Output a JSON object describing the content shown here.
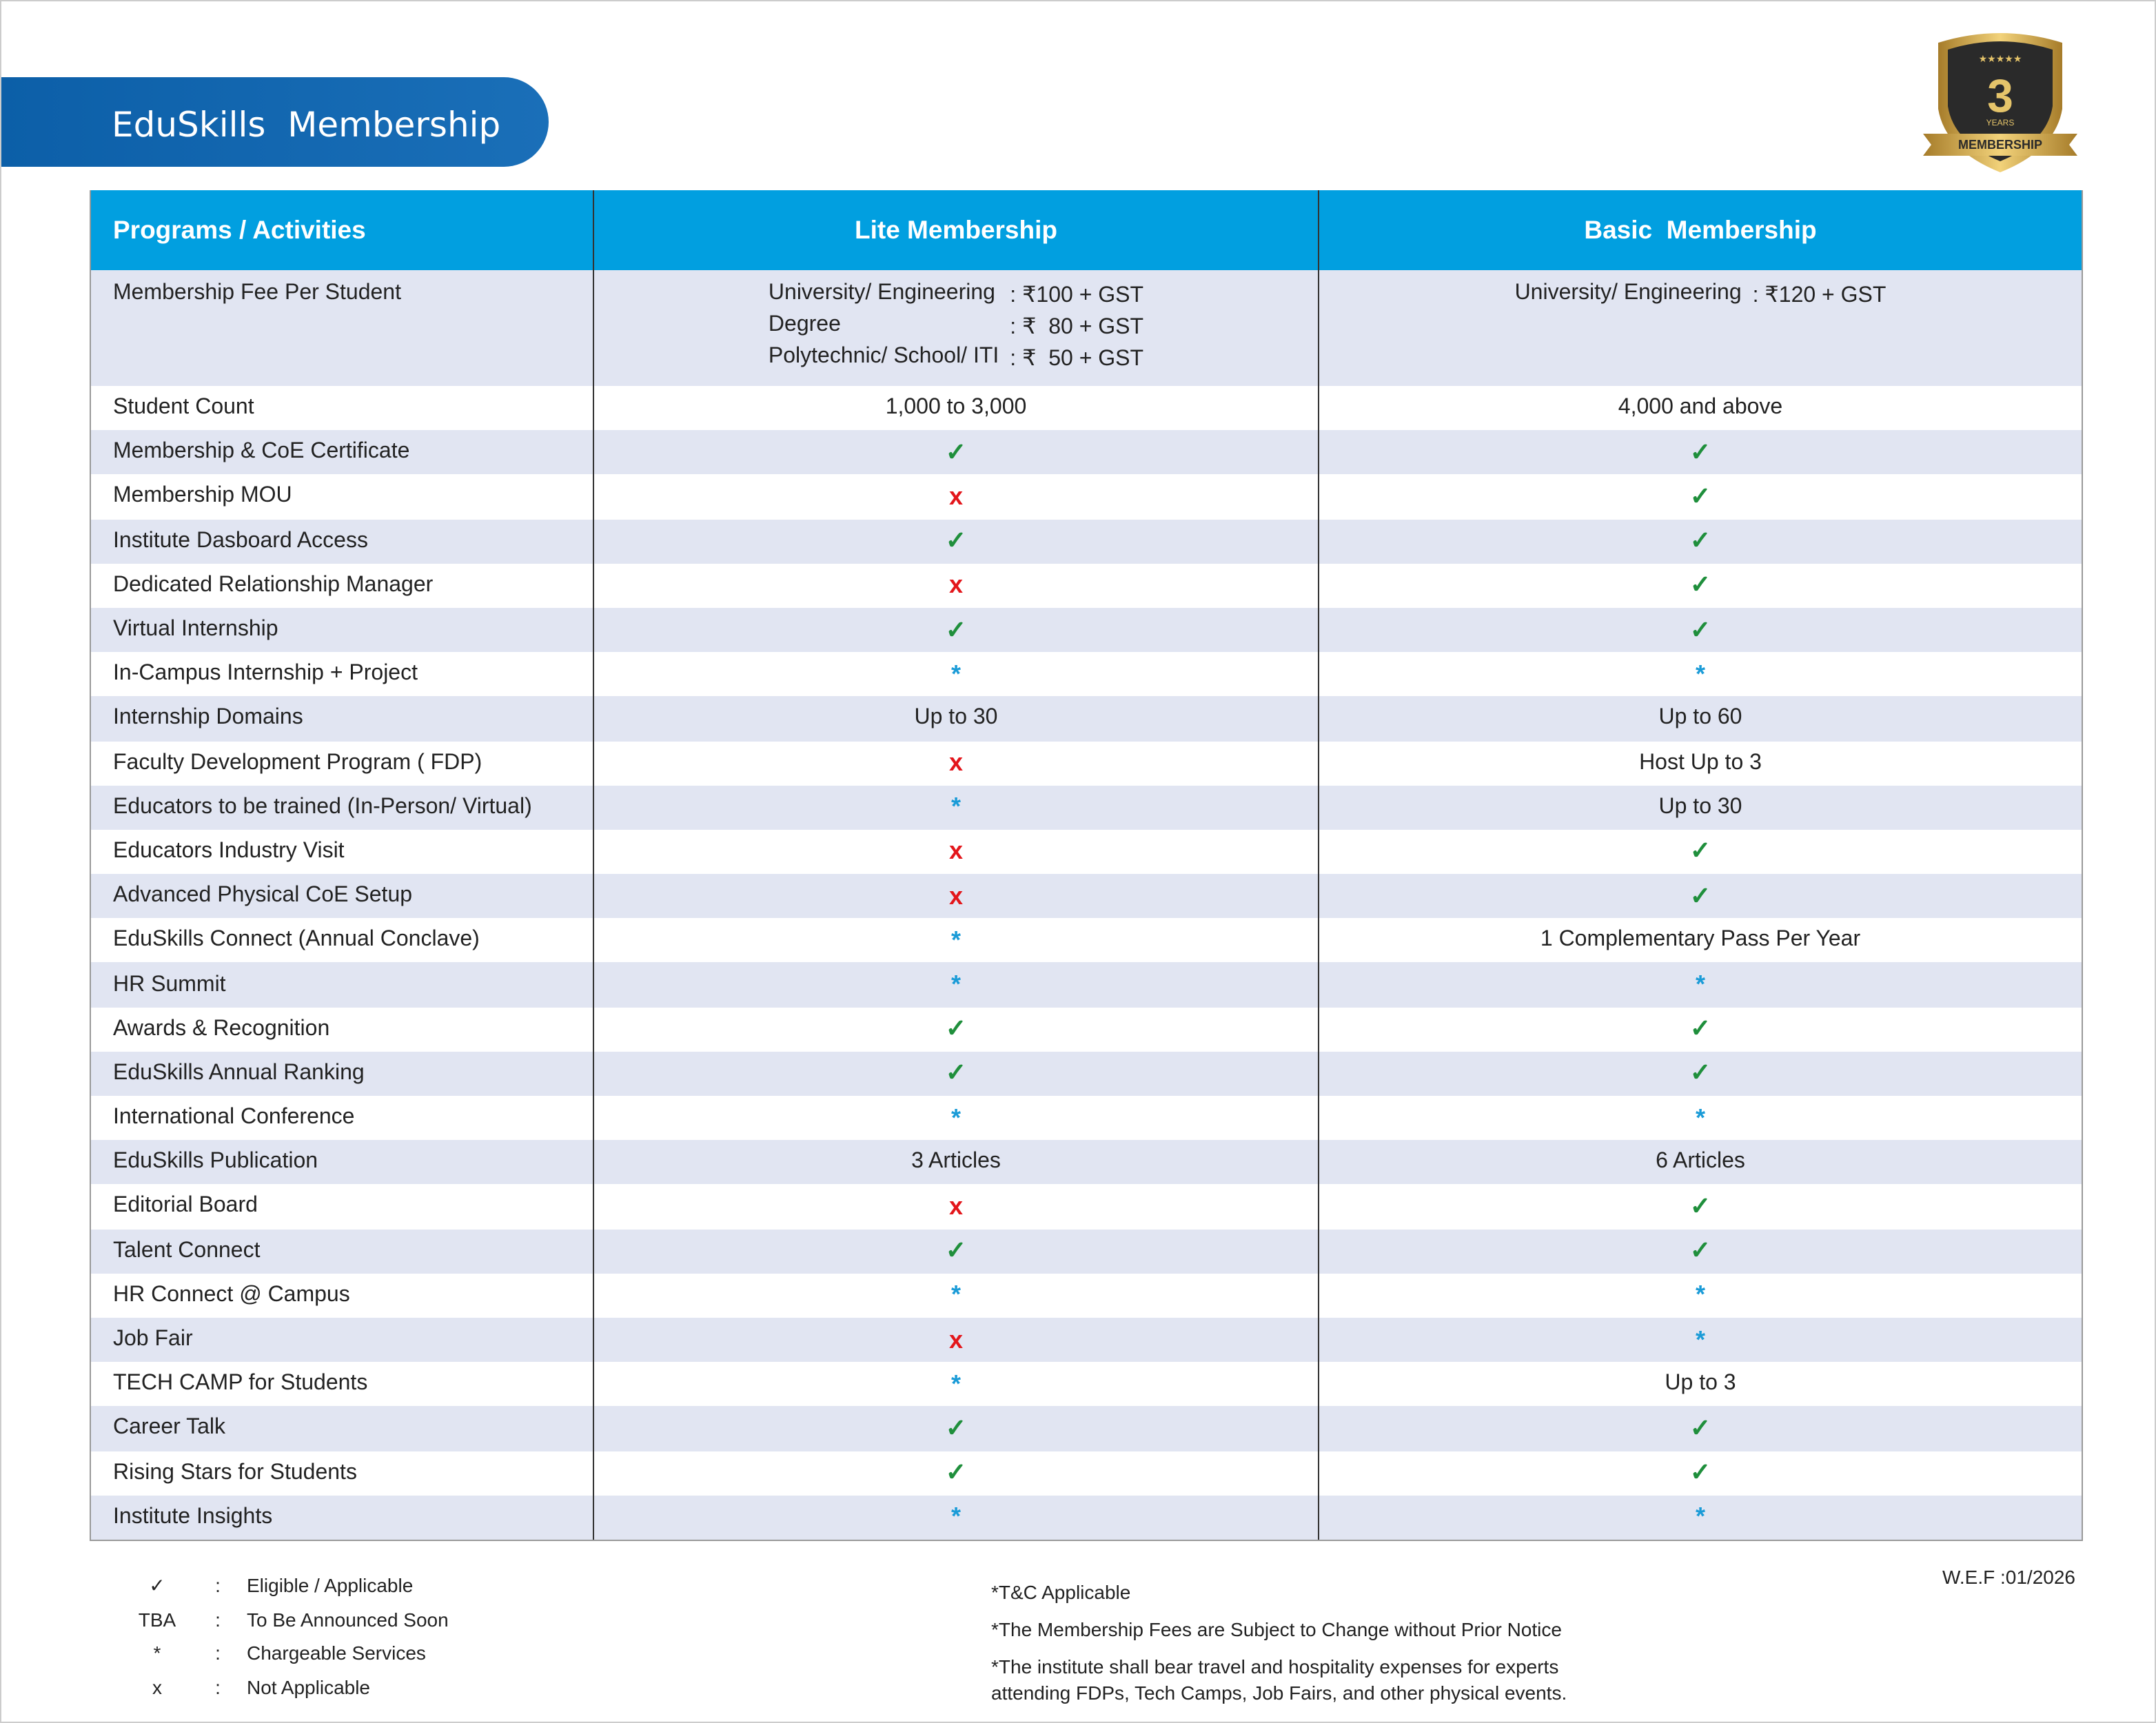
{
  "header": {
    "title": "EduSkills  Membership"
  },
  "badge": {
    "number": "3",
    "unit": "YEARS",
    "ribbon": "MEMBERSHIP"
  },
  "symbol_colors": {
    "✓": "#1f8f3c",
    "x": "#e3161b",
    "*": "#1a9bd7"
  },
  "table": {
    "columns": [
      "Programs / Activities",
      "Lite Membership",
      "Basic  Membership"
    ],
    "fee_row": {
      "label": "Membership Fee Per Student",
      "lite": [
        {
          "label": "University/ Engineering",
          "value": ": ₹100 + GST"
        },
        {
          "label": "Degree",
          "value": ": ₹  80 + GST"
        },
        {
          "label": "Polytechnic/ School/ ITI",
          "value": ": ₹  50 + GST"
        }
      ],
      "basic": [
        {
          "label": "University/ Engineering",
          "value": ": ₹120 + GST"
        }
      ]
    },
    "rows": [
      [
        "Student Count",
        "1,000 to 3,000",
        "4,000 and above"
      ],
      [
        "Membership & CoE Certificate",
        "✓",
        "✓"
      ],
      [
        "Membership MOU",
        "x",
        "✓"
      ],
      [
        "Institute Dasboard Access",
        "✓",
        "✓"
      ],
      [
        "Dedicated Relationship Manager",
        "x",
        "✓"
      ],
      [
        "Virtual Internship",
        "✓",
        "✓"
      ],
      [
        "In-Campus Internship + Project",
        "*",
        "*"
      ],
      [
        "Internship Domains",
        "Up to 30",
        "Up to 60"
      ],
      [
        "Faculty Development Program ( FDP)",
        "x",
        "Host Up to 3"
      ],
      [
        "Educators to be trained (In-Person/ Virtual)",
        "*",
        "Up to 30"
      ],
      [
        "Educators Industry Visit",
        "x",
        "✓"
      ],
      [
        "Advanced Physical CoE Setup",
        "x",
        "✓"
      ],
      [
        "EduSkills Connect (Annual Conclave)",
        "*",
        "1 Complementary Pass Per Year"
      ],
      [
        "HR Summit",
        "*",
        "*"
      ],
      [
        "Awards & Recognition",
        "✓",
        "✓"
      ],
      [
        "EduSkills Annual Ranking",
        "✓",
        "✓"
      ],
      [
        "International Conference",
        "*",
        "*"
      ],
      [
        "EduSkills Publication",
        "3 Articles",
        "6 Articles"
      ],
      [
        "Editorial Board",
        "x",
        "✓"
      ],
      [
        "Talent Connect",
        "✓",
        "✓"
      ],
      [
        "HR Connect @ Campus",
        "*",
        "*"
      ],
      [
        "Job Fair",
        "x",
        "*"
      ],
      [
        "TECH CAMP for Students",
        "*",
        "Up to 3"
      ],
      [
        "Career Talk",
        "✓",
        "✓"
      ],
      [
        "Rising Stars for Students",
        "✓",
        "✓"
      ],
      [
        "Institute Insights",
        "*",
        "*"
      ]
    ]
  },
  "legend": [
    {
      "symbol": "✓",
      "separator": ":",
      "label": "Eligible / Applicable"
    },
    {
      "symbol": "TBA",
      "separator": ":",
      "label": "To Be Announced Soon"
    },
    {
      "symbol": "*",
      "separator": ":",
      "label": "Chargeable Services"
    },
    {
      "symbol": "x",
      "separator": ":",
      "label": "Not Applicable"
    }
  ],
  "notes": [
    "*T&C Applicable",
    "*The Membership Fees are Subject to Change without Prior Notice",
    "*The institute shall bear travel and hospitality expenses for experts attending FDPs, Tech Camps, Job Fairs, and other physical events."
  ],
  "effective": "W.E.F :01/2026"
}
